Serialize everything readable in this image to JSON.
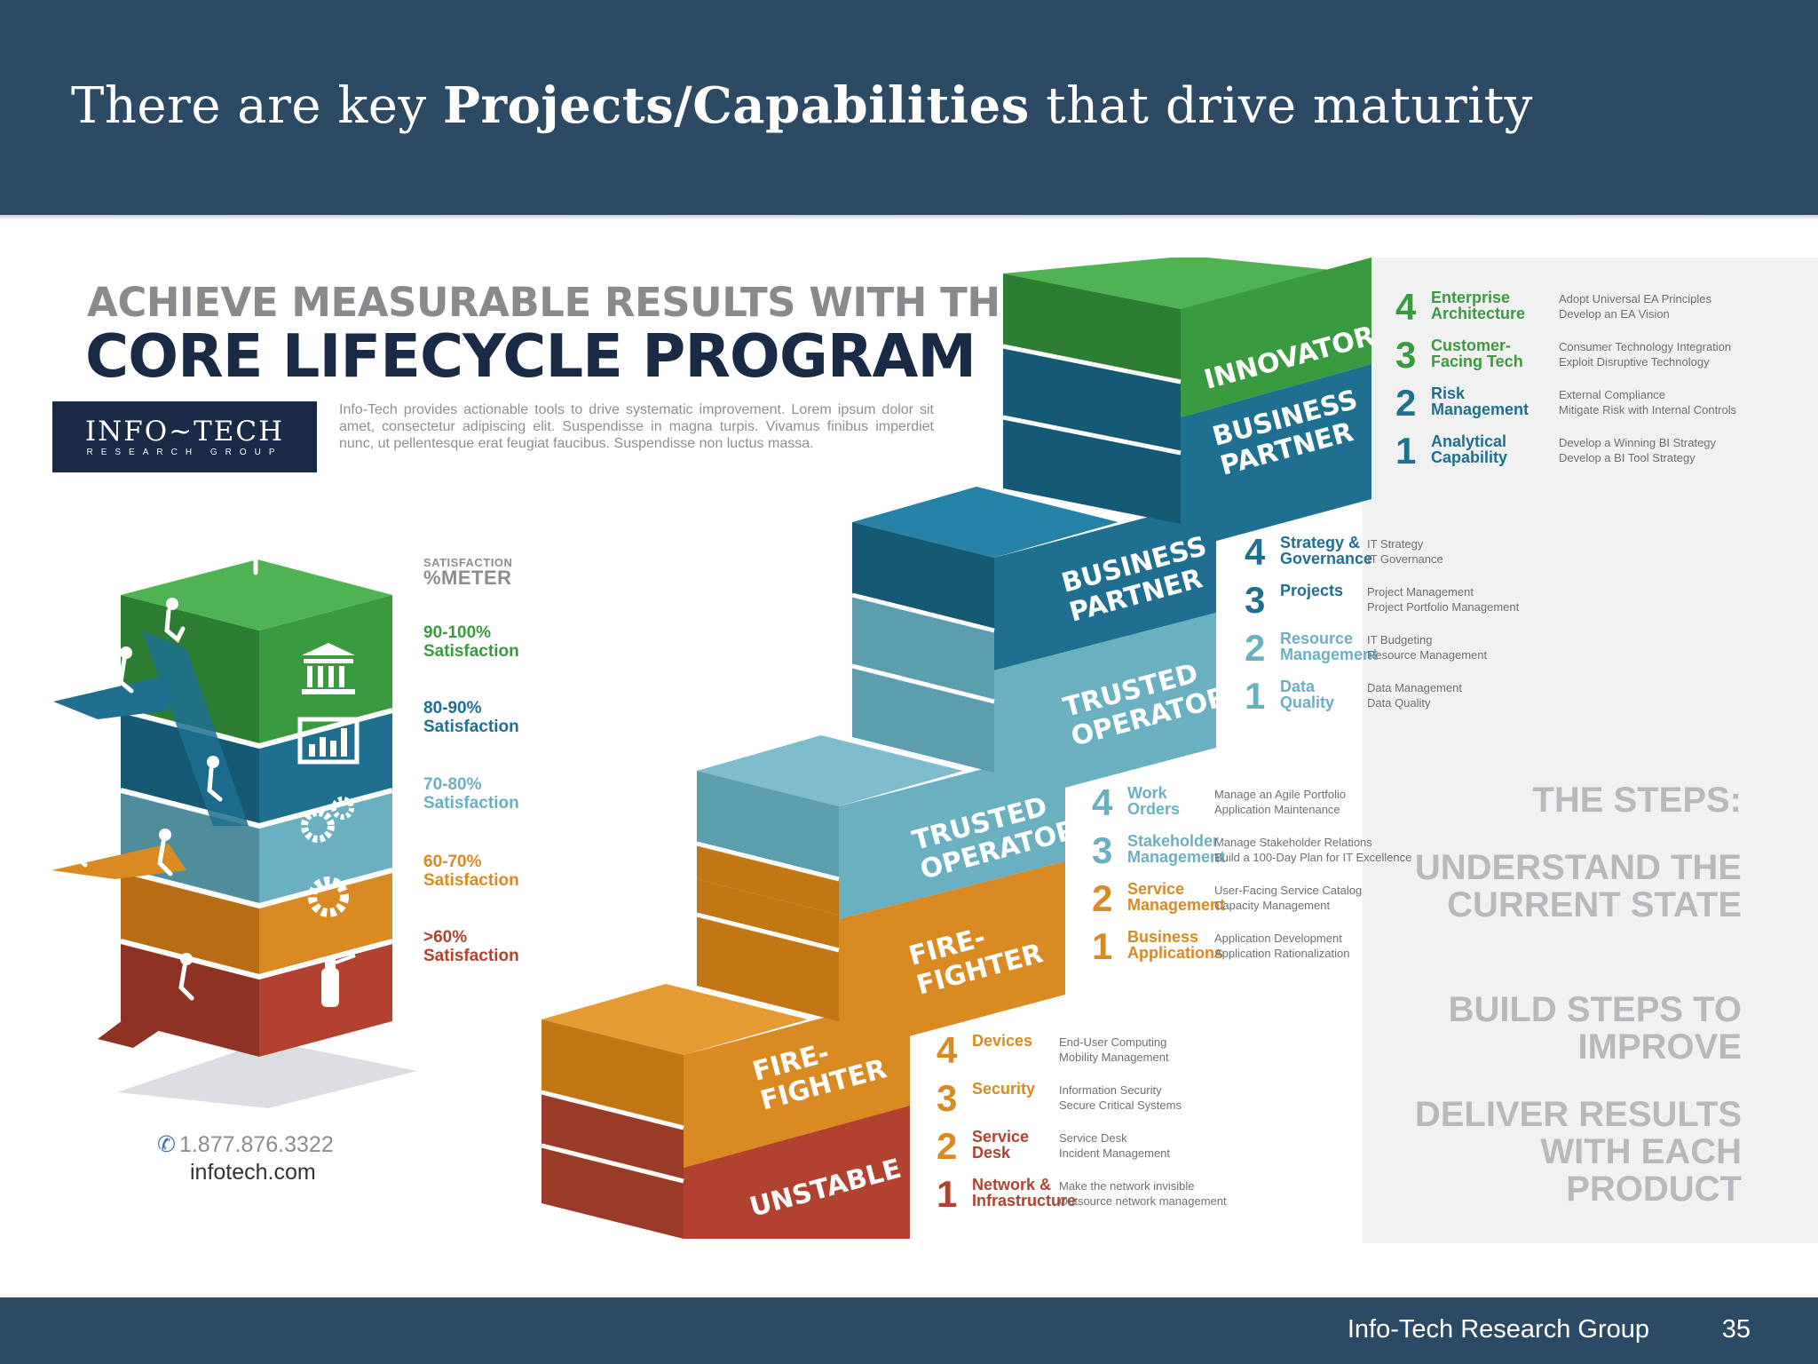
{
  "slide": {
    "title_before": "There are key ",
    "title_bold": "Projects/Capabilities",
    "title_after": " that drive maturity",
    "footer_org": "Info-Tech Research Group",
    "page_number": "35"
  },
  "infographic": {
    "heading_line1": "ACHIEVE MEASURABLE RESULTS WITH THE",
    "heading_line2": "CORE LIFECYCLE PROGRAM",
    "logo_name": "INFO~TECH",
    "logo_sub": "RESEARCH GROUP",
    "intro": "Info-Tech provides actionable tools to drive systematic improvement. Lorem ipsum dolor sit amet, consectetur adipiscing elit. Suspendisse in magna turpis. Vivamus finibus imperdiet nunc, ut pellentesque erat feugiat faucibus. Suspendisse non luctus massa.",
    "meter_title_small": "SATISFACTION",
    "meter_title_large": "%METER",
    "meter": [
      {
        "range": "90-100%",
        "label": "Satisfaction",
        "color": "#3a9a3f",
        "icon": "bank-icon"
      },
      {
        "range": "80-90%",
        "label": "Satisfaction",
        "color": "#1e6f90",
        "icon": "bar-chart-icon"
      },
      {
        "range": "70-80%",
        "label": "Satisfaction",
        "color": "#6ab0c1",
        "icon": "gears-icon"
      },
      {
        "range": "60-70%",
        "label": "Satisfaction",
        "color": "#d98a22",
        "icon": "gear-icon"
      },
      {
        "range": ">60%",
        "label": "Satisfaction",
        "color": "#b3412f",
        "icon": "fire-extinguisher-icon"
      }
    ],
    "phone": "1.877.876.3322",
    "website": "infotech.com",
    "stair_labels": {
      "unstable": "UNSTABLE",
      "firefighter_lower": "FIRE- FIGHTER",
      "firefighter_upper": "FIRE- FIGHTER",
      "trusted_lower": "TRUSTED OPERATOR",
      "trusted_upper": "TRUSTED OPERATOR",
      "business_lower": "BUSINESS PARTNER",
      "business_upper": "BUSINESS PARTNER",
      "innovator": "INNOVATOR"
    },
    "step_groups": [
      {
        "color": "#d98a22",
        "items": [
          {
            "num": "4",
            "name": "Devices",
            "desc1": "End-User Computing",
            "desc2": "Mobility Management"
          },
          {
            "num": "3",
            "name": "Security",
            "desc1": "Information Security",
            "desc2": "Secure Critical Systems"
          },
          {
            "num": "2",
            "name": "Service Desk",
            "desc1": "Service Desk",
            "desc2": "Incident Management"
          },
          {
            "num": "1",
            "name": "Network & Infrastructure",
            "desc1": "Make the network invisible",
            "desc2": "Outsource network management"
          }
        ]
      },
      {
        "color": "#d98a22",
        "num_color": "#6ab0c1",
        "items": [
          {
            "num": "4",
            "name": "Work Orders",
            "desc1": "Manage an Agile Portfolio",
            "desc2": "Application Maintenance"
          },
          {
            "num": "3",
            "name": "Stakeholder Management",
            "desc1": "Manage Stakeholder Relations",
            "desc2": "Build a 100-Day Plan for IT Excellence"
          },
          {
            "num": "2",
            "name": "Service Management",
            "desc1": "User-Facing Service Catalog",
            "desc2": "Capacity Management"
          },
          {
            "num": "1",
            "name": "Business Applications",
            "desc1": "Application Development",
            "desc2": "Application Rationalization"
          }
        ]
      },
      {
        "color": "#1e6f90",
        "items": [
          {
            "num": "4",
            "name": "Strategy & Governance",
            "desc1": "IT Strategy",
            "desc2": "IT Governance"
          },
          {
            "num": "3",
            "name": "Projects",
            "desc1": "Project Management",
            "desc2": "Project Portfolio Management"
          },
          {
            "num": "2",
            "name": "Resource Management",
            "desc1": "IT Budgeting",
            "desc2": "Resource Management"
          },
          {
            "num": "1",
            "name": "Data Quality",
            "desc1": "Data Management",
            "desc2": "Data Quality"
          }
        ]
      },
      {
        "color": "#3a9a3f",
        "items": [
          {
            "num": "4",
            "name": "Enterprise Architecture",
            "desc1": "Adopt Universal EA Principles",
            "desc2": "Develop an EA Vision"
          },
          {
            "num": "3",
            "name": "Customer-Facing Tech",
            "desc1": "Consumer Technology Integration",
            "desc2": "Exploit Disruptive Technology"
          },
          {
            "num": "2",
            "name": "Risk Management",
            "desc1": "External Compliance",
            "desc2": "Mitigate Risk with Internal Controls"
          },
          {
            "num": "1",
            "name": "Analytical Capability",
            "desc1": "Develop a Winning BI Strategy",
            "desc2": "Develop a BI Tool Strategy"
          }
        ]
      }
    ],
    "steps_heading": "THE STEPS:",
    "steps_phrases": [
      "UNDERSTAND THE CURRENT STATE",
      "BUILD STEPS TO IMPROVE",
      "DELIVER RESULTS WITH EACH PRODUCT"
    ]
  }
}
